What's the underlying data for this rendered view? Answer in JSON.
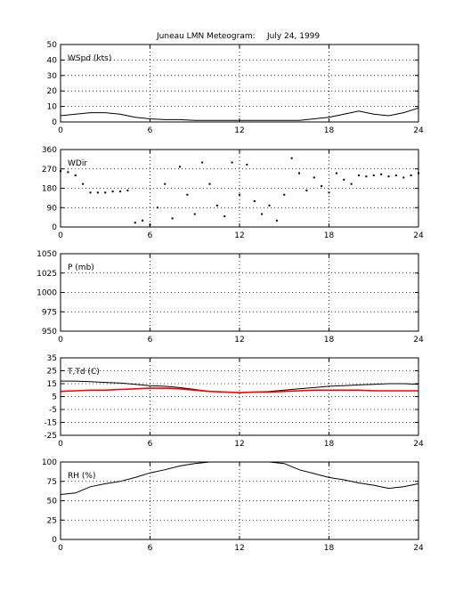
{
  "figure": {
    "title": "Juneau LMN Meteogram:",
    "date": "July 24, 1999"
  },
  "chart_data": [
    {
      "type": "line",
      "label": "WSpd (kts)",
      "xlim": [
        0,
        24
      ],
      "ylim": [
        0,
        50
      ],
      "xticks": [
        0,
        6,
        12,
        18,
        24
      ],
      "yticks": [
        0,
        10,
        20,
        30,
        40,
        50
      ],
      "grid": true,
      "series": [
        {
          "color": "#000000",
          "x": [
            0,
            1,
            2,
            3,
            4,
            5,
            6,
            7,
            8,
            9,
            10,
            11,
            12,
            13,
            14,
            15,
            16,
            17,
            18,
            19,
            20,
            21,
            22,
            23,
            24
          ],
          "y": [
            4,
            5,
            6,
            6,
            5,
            3,
            2,
            1.5,
            1.5,
            1,
            1,
            1,
            1,
            1,
            1,
            1,
            1,
            2,
            3,
            5,
            7,
            5,
            4,
            6,
            9
          ]
        }
      ]
    },
    {
      "type": "scatter",
      "label": "WDir",
      "xlim": [
        0,
        24
      ],
      "ylim": [
        0,
        360
      ],
      "xticks": [
        0,
        6,
        12,
        18,
        24
      ],
      "yticks": [
        0,
        90,
        180,
        270,
        360
      ],
      "grid": true,
      "series": [
        {
          "color": "#000000",
          "x": [
            0,
            0.5,
            1,
            1.5,
            2,
            2.5,
            3,
            3.5,
            4,
            4.5,
            5,
            5.5,
            6,
            6.5,
            7,
            7.5,
            8,
            8.5,
            9,
            9.5,
            10,
            10.5,
            11,
            11.5,
            12,
            12.5,
            13,
            13.5,
            14,
            14.5,
            15,
            15.5,
            16,
            16.5,
            17,
            17.5,
            18,
            18.5,
            19,
            19.5,
            20,
            20.5,
            21,
            21.5,
            22,
            22.5,
            23,
            23.5,
            24
          ],
          "y": [
            260,
            255,
            240,
            200,
            160,
            160,
            160,
            165,
            165,
            170,
            20,
            30,
            10,
            90,
            200,
            40,
            280,
            150,
            60,
            300,
            200,
            100,
            50,
            300,
            150,
            290,
            120,
            60,
            100,
            30,
            150,
            320,
            250,
            170,
            230,
            190,
            160,
            250,
            220,
            200,
            240,
            235,
            240,
            245,
            235,
            240,
            230,
            240,
            250
          ]
        }
      ]
    },
    {
      "type": "line",
      "label": "P (mb)",
      "xlim": [
        0,
        24
      ],
      "ylim": [
        950,
        1050
      ],
      "xticks": [
        0,
        6,
        12,
        18,
        24
      ],
      "yticks": [
        950,
        975,
        1000,
        1025,
        1050
      ],
      "grid": true,
      "series": []
    },
    {
      "type": "line",
      "label": "T,Td (C)",
      "xlim": [
        0,
        24
      ],
      "ylim": [
        -25,
        35
      ],
      "xticks": [
        0,
        6,
        12,
        18,
        24
      ],
      "yticks": [
        -25,
        -15,
        -5,
        5,
        15,
        25,
        35
      ],
      "grid": true,
      "series": [
        {
          "color": "#000000",
          "x": [
            0,
            1,
            2,
            3,
            4,
            5,
            6,
            7,
            8,
            9,
            10,
            11,
            12,
            13,
            14,
            15,
            16,
            17,
            18,
            19,
            20,
            21,
            22,
            23,
            24
          ],
          "y": [
            17,
            17,
            16.5,
            16,
            15.5,
            14.5,
            13.5,
            13,
            12,
            10.5,
            9,
            8.5,
            8,
            8.5,
            9,
            10,
            11,
            12,
            13,
            13.5,
            14,
            14.5,
            15,
            15,
            14.5
          ]
        },
        {
          "color": "#ff0000",
          "x": [
            0,
            1,
            2,
            3,
            4,
            5,
            6,
            7,
            8,
            9,
            10,
            11,
            12,
            13,
            14,
            15,
            16,
            17,
            18,
            19,
            20,
            21,
            22,
            23,
            24
          ],
          "y": [
            9,
            9.5,
            10,
            10,
            10.5,
            11,
            11.5,
            11.5,
            11,
            10,
            9,
            8.5,
            8,
            8.5,
            8.5,
            9,
            9.5,
            10,
            10,
            10,
            10,
            9.5,
            9.5,
            9.5,
            9.5
          ]
        }
      ]
    },
    {
      "type": "line",
      "label": "RH (%)",
      "xlim": [
        0,
        24
      ],
      "ylim": [
        0,
        100
      ],
      "xticks": [
        0,
        6,
        12,
        18,
        24
      ],
      "yticks": [
        0,
        25,
        50,
        75,
        100
      ],
      "grid": true,
      "series": [
        {
          "color": "#000000",
          "x": [
            0,
            1,
            2,
            3,
            4,
            5,
            6,
            7,
            8,
            9,
            10,
            11,
            12,
            13,
            14,
            15,
            16,
            17,
            18,
            19,
            20,
            21,
            22,
            23,
            24
          ],
          "y": [
            58,
            60,
            68,
            72,
            75,
            80,
            86,
            90,
            95,
            98,
            100,
            100,
            100,
            100,
            100,
            98,
            90,
            85,
            80,
            77,
            73,
            70,
            66,
            68,
            72
          ]
        }
      ]
    }
  ]
}
